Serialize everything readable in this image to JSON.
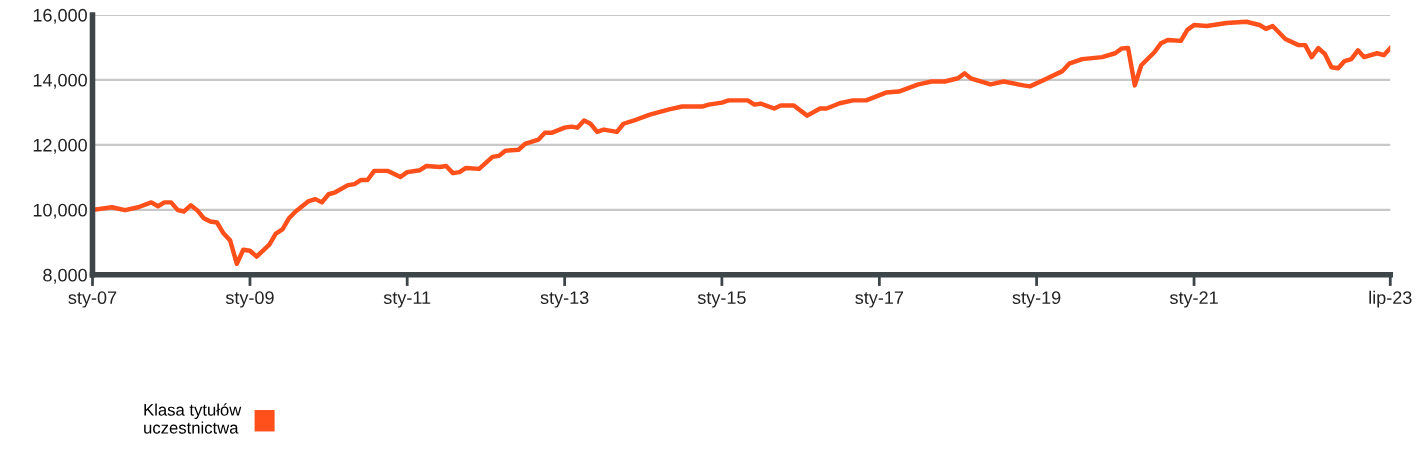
{
  "chart_data": {
    "type": "line",
    "x": [
      "2007-01",
      "2007-04",
      "2007-06",
      "2007-08",
      "2007-10",
      "2007-11",
      "2007-12",
      "2008-01",
      "2008-02",
      "2008-03",
      "2008-04",
      "2008-05",
      "2008-06",
      "2008-07",
      "2008-08",
      "2008-09",
      "2008-10",
      "2008-11",
      "2008-12",
      "2009-01",
      "2009-02",
      "2009-04",
      "2009-05",
      "2009-06",
      "2009-07",
      "2009-08",
      "2009-10",
      "2009-11",
      "2009-12",
      "2010-01",
      "2010-02",
      "2010-04",
      "2010-05",
      "2010-06",
      "2010-07",
      "2010-08",
      "2010-10",
      "2010-12",
      "2011-01",
      "2011-03",
      "2011-04",
      "2011-06",
      "2011-07",
      "2011-08",
      "2011-09",
      "2011-10",
      "2011-12",
      "2012-02",
      "2012-03",
      "2012-04",
      "2012-06",
      "2012-07",
      "2012-09",
      "2012-10",
      "2012-11",
      "2013-01",
      "2013-02",
      "2013-03",
      "2013-04",
      "2013-05",
      "2013-06",
      "2013-07",
      "2013-09",
      "2013-10",
      "2013-12",
      "2014-02",
      "2014-05",
      "2014-07",
      "2014-10",
      "2014-11",
      "2015-01",
      "2015-02",
      "2015-04",
      "2015-05",
      "2015-06",
      "2015-07",
      "2015-09",
      "2015-10",
      "2015-12",
      "2016-02",
      "2016-04",
      "2016-05",
      "2016-07",
      "2016-09",
      "2016-11",
      "2017-02",
      "2017-04",
      "2017-07",
      "2017-09",
      "2017-11",
      "2018-01",
      "2018-02",
      "2018-03",
      "2018-06",
      "2018-08",
      "2018-11",
      "2018-12",
      "2019-02",
      "2019-05",
      "2019-06",
      "2019-08",
      "2019-11",
      "2020-01",
      "2020-02",
      "2020-03",
      "2020-04",
      "2020-05",
      "2020-07",
      "2020-08",
      "2020-09",
      "2020-11",
      "2020-12",
      "2021-01",
      "2021-03",
      "2021-06",
      "2021-09",
      "2021-11",
      "2021-12",
      "2022-01",
      "2022-03",
      "2022-05",
      "2022-06",
      "2022-07",
      "2022-08",
      "2022-09",
      "2022-10",
      "2022-11",
      "2022-12",
      "2023-01",
      "2023-02",
      "2023-03",
      "2023-05",
      "2023-06",
      "2023-07"
    ],
    "series": [
      {
        "name": "Klasa tytułów\nuczestnictwa",
        "color": "#ff4f1a",
        "values": [
          10000,
          10080,
          9990,
          10080,
          10230,
          10110,
          10230,
          10230,
          9990,
          9950,
          10140,
          9990,
          9740,
          9640,
          9610,
          9270,
          9060,
          8340,
          8770,
          8740,
          8560,
          8930,
          9270,
          9400,
          9740,
          9950,
          10270,
          10330,
          10230,
          10480,
          10540,
          10760,
          10790,
          10920,
          10920,
          11200,
          11200,
          11010,
          11160,
          11220,
          11350,
          11320,
          11350,
          11130,
          11160,
          11290,
          11260,
          11630,
          11660,
          11820,
          11850,
          12030,
          12160,
          12370,
          12370,
          12530,
          12560,
          12530,
          12750,
          12650,
          12400,
          12470,
          12400,
          12650,
          12780,
          12930,
          13090,
          13180,
          13180,
          13240,
          13300,
          13370,
          13370,
          13370,
          13240,
          13270,
          13120,
          13210,
          13210,
          12900,
          13120,
          13120,
          13280,
          13370,
          13370,
          13610,
          13640,
          13860,
          13950,
          13950,
          14050,
          14200,
          14050,
          13860,
          13950,
          13830,
          13800,
          13990,
          14270,
          14500,
          14640,
          14700,
          14820,
          14970,
          14980,
          13830,
          14450,
          14850,
          15130,
          15230,
          15200,
          15540,
          15690,
          15660,
          15750,
          15790,
          15690,
          15570,
          15660,
          15260,
          15070,
          15070,
          14700,
          14980,
          14790,
          14390,
          14360,
          14580,
          14640,
          14910,
          14700,
          14820,
          14760,
          14980
        ]
      }
    ],
    "xlim": [
      "2007-01",
      "2023-07"
    ],
    "xticks": [
      {
        "value": "2007-01",
        "label": "sty-07"
      },
      {
        "value": "2009-01",
        "label": "sty-09"
      },
      {
        "value": "2011-01",
        "label": "sty-11"
      },
      {
        "value": "2013-01",
        "label": "sty-13"
      },
      {
        "value": "2015-01",
        "label": "sty-15"
      },
      {
        "value": "2017-01",
        "label": "sty-17"
      },
      {
        "value": "2019-01",
        "label": "sty-19"
      },
      {
        "value": "2021-01",
        "label": "sty-21"
      },
      {
        "value": "2023-07",
        "label": "lip-23"
      }
    ],
    "ylim": [
      8000,
      16000
    ],
    "yticks": [
      {
        "value": 8000,
        "label": "8,000"
      },
      {
        "value": 10000,
        "label": "10,000"
      },
      {
        "value": 12000,
        "label": "12,000"
      },
      {
        "value": 14000,
        "label": "14,000"
      },
      {
        "value": 16000,
        "label": "16,000"
      }
    ],
    "grid": "y",
    "legend": "bottom left",
    "marker": "none",
    "line_style": "solid"
  }
}
